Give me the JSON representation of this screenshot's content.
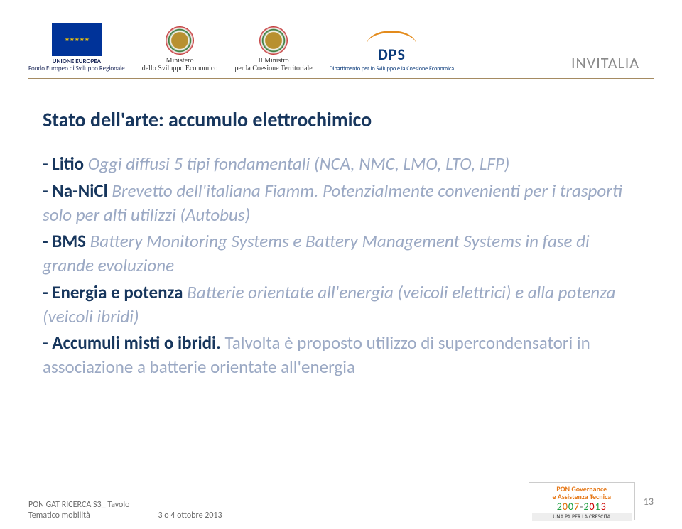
{
  "header": {
    "eu": {
      "union": "UNIONE EUROPEA",
      "fund": "Fondo Europeo di Sviluppo Regionale"
    },
    "ministry1": {
      "line1": "Ministero",
      "line2": "dello Sviluppo Economico"
    },
    "ministry2": {
      "line1": "Il Ministro",
      "line2": "per la Coesione Territoriale"
    },
    "dps": {
      "logo": "DPS",
      "sub": "Dipartimento per lo Sviluppo e la Coesione Economica"
    },
    "invitalia": "INVITALIA"
  },
  "title": "Stato dell'arte: accumulo elettrochimico",
  "bullets": {
    "litio_kw": "- Litio",
    "litio_rest": "Oggi diffusi 5 tipi fondamentali (NCA, NMC, LMO, LTO, LFP)",
    "nanicl_kw": "- Na-NiCl",
    "nanicl_rest": "Brevetto dell'italiana Fiamm. Potenzialmente convenienti per i trasporti solo per alti utilizzi (Autobus)",
    "bms_kw": "- BMS",
    "bms_rest": "Battery Monitoring Systems e Battery Management Systems in fase di grande evoluzione",
    "ep_kw": "- Energia e potenza",
    "ep_rest": "Batterie orientate all'energia (veicoli elettrici) e alla potenza (veicoli ibridi)",
    "acc_kw": "- Accumuli misti o ibridi.",
    "acc_rest": "Talvolta è proposto utilizzo di supercondensatori in associazione a batterie orientate all'energia"
  },
  "footer": {
    "left1": "PON GAT RICERCA S3_ Tavolo",
    "left2": "Tematico mobilità",
    "center": "3 o 4 ottobre 2013",
    "pon_title1": "PON Governance",
    "pon_title2": "e Assistenza Tecnica",
    "pon_years": "2007-2013",
    "pon_sub": "UNA PA PER LA CRESCITA",
    "page": "13"
  }
}
